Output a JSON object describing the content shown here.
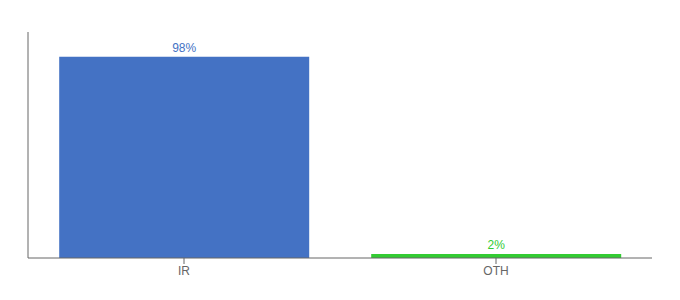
{
  "chart_data": {
    "type": "bar",
    "categories": [
      "IR",
      "OTH"
    ],
    "values": [
      98,
      2
    ],
    "value_labels": [
      "98%",
      "2%"
    ],
    "colors": [
      "#4472c4",
      "#33cc33"
    ],
    "ylim": [
      0,
      110
    ],
    "data_labels": true,
    "tick_labels": "x"
  }
}
